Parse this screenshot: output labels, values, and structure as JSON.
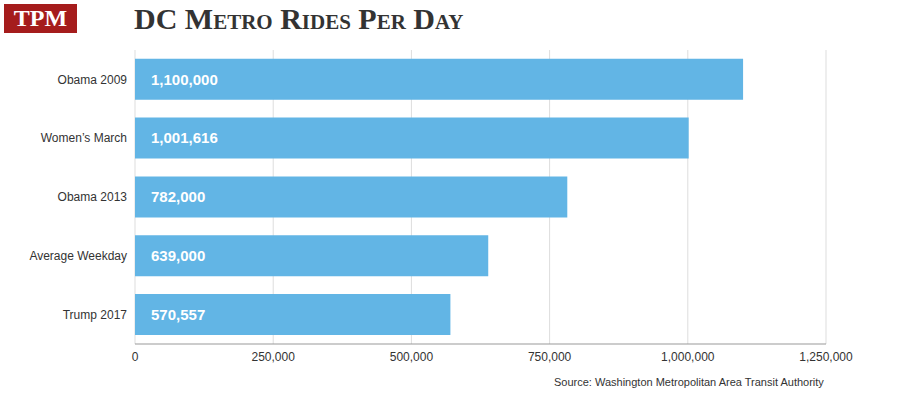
{
  "chart_data": {
    "type": "bar",
    "title": "DC Metro Rides Per Day",
    "logo": "TPM",
    "source": "Source: Washington Metropolitan Area Transit Authority",
    "orientation": "horizontal",
    "categories": [
      "Obama 2009",
      "Women’s March",
      "Obama 2013",
      "Average Weekday",
      "Trump 2017"
    ],
    "values": [
      1100000,
      1001616,
      782000,
      639000,
      570557
    ],
    "value_labels": [
      "1,100,000",
      "1,001,616",
      "782,000",
      "639,000",
      "570,557"
    ],
    "data_labels": true,
    "color": "#62b5e5",
    "xlim": [
      0,
      1250000
    ],
    "xticks": [
      0,
      {
        "value": 250000,
        "label": "250,000"
      },
      {
        "value": 500000,
        "label": "500,000"
      },
      {
        "value": 750000,
        "label": "750,000"
      },
      {
        "value": 1000000,
        "label": "1,000,000"
      },
      {
        "value": 1250000,
        "label": "1,250,000"
      }
    ],
    "grid": true
  }
}
